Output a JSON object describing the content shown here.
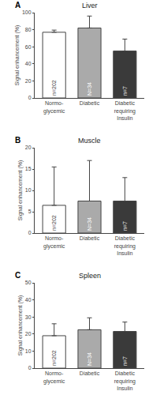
{
  "chart_data": [
    {
      "type": "bar",
      "title": "Liver",
      "panel_label": "A",
      "ylabel": "Signal enhancement (%)",
      "categories": [
        "Normo-\nglycemic",
        "Diabetic",
        "Diabetic\nrequiring\nInsulin"
      ],
      "values": [
        77,
        82,
        55
      ],
      "errors": [
        2.5,
        14,
        14
      ],
      "colors": [
        "#ffffff",
        "#aaaaaa",
        "#3a3a3a"
      ],
      "annotations": [
        "n=202",
        "N=34",
        "n=7"
      ],
      "ylim": [
        0,
        100
      ],
      "yticks": [
        0,
        20,
        40,
        60,
        80,
        100
      ],
      "grid": false
    },
    {
      "type": "bar",
      "title": "Muscle",
      "panel_label": "B",
      "ylabel": "Signal enhancement (%)",
      "categories": [
        "Normo-\nglycemic",
        "Diabetic",
        "Diabetic\nrequiring\nInsulin"
      ],
      "values": [
        6.5,
        7.5,
        7.5
      ],
      "errors": [
        9.0,
        9.5,
        5.5
      ],
      "colors": [
        "#ffffff",
        "#aaaaaa",
        "#3a3a3a"
      ],
      "annotations": [
        "n=202",
        "N=34",
        "n=7"
      ],
      "ylim": [
        0,
        20
      ],
      "yticks": [
        0,
        5,
        10,
        15,
        20
      ],
      "grid": false
    },
    {
      "type": "bar",
      "title": "Spleen",
      "panel_label": "C",
      "ylabel": "Signal enhancement (%)",
      "categories": [
        "Normo-\nglycemic",
        "Diabetic",
        "Diabetic\nrequiring\nInsulin"
      ],
      "values": [
        19,
        22.5,
        21.5
      ],
      "errors": [
        7,
        7,
        5.5
      ],
      "colors": [
        "#ffffff",
        "#aaaaaa",
        "#3a3a3a"
      ],
      "annotations": [
        "n=202",
        "N=34",
        "n=7"
      ],
      "ylim": [
        0,
        50
      ],
      "yticks": [
        0,
        10,
        20,
        30,
        40,
        50
      ],
      "grid": false
    }
  ]
}
